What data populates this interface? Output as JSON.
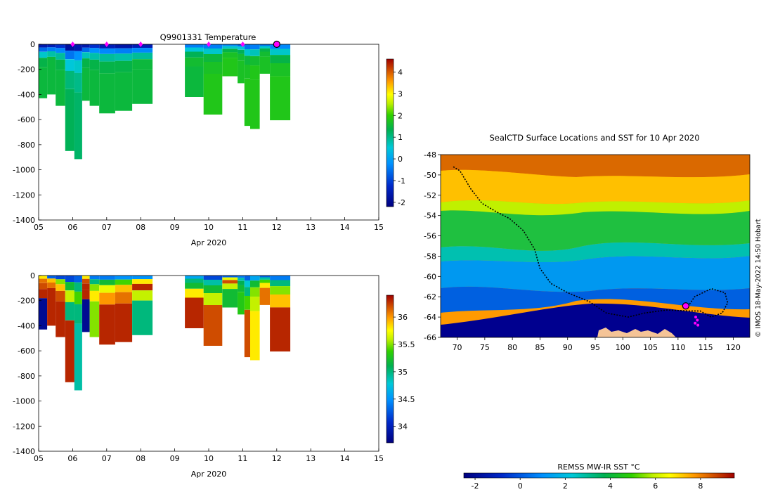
{
  "chart_data": [
    {
      "type": "heatmap",
      "title": "Q9901331  Temperature",
      "xlabel": "Apr 2020",
      "ylabel": "",
      "x_ticks": [
        "05",
        "06",
        "07",
        "08",
        "09",
        "10",
        "11",
        "12",
        "13",
        "14",
        "15"
      ],
      "xlim": [
        5,
        15
      ],
      "y_ticks": [
        0,
        -200,
        -400,
        -600,
        -800,
        -1000,
        -1200,
        -1400
      ],
      "ylim": [
        -1400,
        0
      ],
      "colorbar_ticks": [
        4,
        3,
        2,
        1,
        0,
        -1,
        -2
      ],
      "colorbar_range": [
        -2.2,
        4.6
      ],
      "profile_markers_x": [
        6,
        7,
        8,
        10,
        11
      ],
      "current_marker_x": 12,
      "profiles": [
        {
          "x0": 5.0,
          "x1": 5.25,
          "depth": -430,
          "temps": [
            -1.6,
            -0.6,
            0.6,
            1.4,
            1.5
          ]
        },
        {
          "x0": 5.25,
          "x1": 5.5,
          "depth": -400,
          "temps": [
            -1.5,
            -0.4,
            0.8,
            1.5,
            1.5
          ]
        },
        {
          "x0": 5.5,
          "x1": 5.78,
          "depth": -490,
          "temps": [
            -1.2,
            -0.3,
            0.9,
            1.4,
            1.5
          ]
        },
        {
          "x0": 5.78,
          "x1": 6.05,
          "depth": -850,
          "temps": [
            -1.8,
            -0.5,
            0.5,
            1.1,
            1.3
          ]
        },
        {
          "x0": 6.05,
          "x1": 6.28,
          "depth": -915,
          "temps": [
            -1.6,
            -0.2,
            0.6,
            1.0,
            1.2
          ]
        },
        {
          "x0": 6.28,
          "x1": 6.5,
          "depth": -450,
          "temps": [
            -1.6,
            -0.6,
            0.7,
            1.4,
            1.5
          ]
        },
        {
          "x0": 6.5,
          "x1": 6.78,
          "depth": -490,
          "temps": [
            -1.2,
            -0.2,
            0.8,
            1.4,
            1.5
          ]
        },
        {
          "x0": 6.78,
          "x1": 7.25,
          "depth": -550,
          "temps": [
            -1.5,
            -0.3,
            0.9,
            1.4,
            1.5
          ]
        },
        {
          "x0": 7.25,
          "x1": 7.75,
          "depth": -530,
          "temps": [
            -1.7,
            -0.4,
            0.8,
            1.4,
            1.5
          ]
        },
        {
          "x0": 7.75,
          "x1": 8.35,
          "depth": -475,
          "temps": [
            -1.5,
            -0.3,
            0.9,
            1.5,
            1.5
          ]
        },
        {
          "x0": 9.3,
          "x1": 9.85,
          "depth": -420,
          "temps": [
            -0.4,
            0.5,
            1.3,
            1.6,
            1.5
          ]
        },
        {
          "x0": 9.85,
          "x1": 10.4,
          "depth": -560,
          "temps": [
            -0.4,
            0.6,
            1.5,
            1.7,
            1.8
          ]
        },
        {
          "x0": 10.4,
          "x1": 10.85,
          "depth": -255,
          "temps": [
            -0.3,
            0.6,
            1.4,
            1.7,
            1.8
          ]
        },
        {
          "x0": 10.85,
          "x1": 11.05,
          "depth": -310,
          "temps": [
            -0.6,
            0.5,
            1.3,
            1.6,
            1.7
          ]
        },
        {
          "x0": 11.05,
          "x1": 11.22,
          "depth": -650,
          "temps": [
            -0.5,
            0.6,
            1.5,
            1.7,
            1.8
          ]
        },
        {
          "x0": 11.22,
          "x1": 11.5,
          "depth": -675,
          "temps": [
            -0.4,
            0.7,
            1.6,
            1.8,
            1.8
          ]
        },
        {
          "x0": 11.5,
          "x1": 11.8,
          "depth": -235,
          "temps": [
            -0.5,
            0.6,
            1.4,
            1.6,
            1.7
          ]
        },
        {
          "x0": 11.8,
          "x1": 12.4,
          "depth": -605,
          "temps": [
            -0.3,
            0.6,
            1.4,
            1.7,
            1.8
          ]
        }
      ]
    },
    {
      "type": "heatmap",
      "title": "",
      "xlabel": "Apr 2020",
      "ylabel": "",
      "x_ticks": [
        "05",
        "06",
        "07",
        "08",
        "09",
        "10",
        "11",
        "12",
        "13",
        "14",
        "15"
      ],
      "xlim": [
        5,
        15
      ],
      "y_ticks": [
        0,
        -200,
        -400,
        -600,
        -800,
        -1000,
        -1200,
        -1400
      ],
      "ylim": [
        -1400,
        0
      ],
      "colorbar_ticks": [
        36,
        35.5,
        35,
        34.5,
        34
      ],
      "colorbar_range": [
        33.7,
        36.4
      ],
      "profiles": [
        {
          "x0": 5.0,
          "x1": 5.25,
          "depth": -430,
          "vals": [
            35.8,
            36.1,
            36.2,
            36.3,
            33.8
          ]
        },
        {
          "x0": 5.25,
          "x1": 5.5,
          "depth": -400,
          "vals": [
            34.3,
            35.9,
            36.1,
            36.3,
            36.3
          ]
        },
        {
          "x0": 5.5,
          "x1": 5.78,
          "depth": -490,
          "vals": [
            34.2,
            35.5,
            35.9,
            36.2,
            36.3
          ]
        },
        {
          "x0": 5.78,
          "x1": 6.05,
          "depth": -850,
          "vals": [
            34.2,
            35.2,
            35.6,
            35.0,
            36.3
          ]
        },
        {
          "x0": 6.05,
          "x1": 6.28,
          "depth": -915,
          "vals": [
            34.3,
            35.0,
            35.4,
            35.0,
            34.9
          ]
        },
        {
          "x0": 6.28,
          "x1": 6.5,
          "depth": -450,
          "vals": [
            35.8,
            36.2,
            36.3,
            36.3,
            33.8
          ]
        },
        {
          "x0": 6.5,
          "x1": 6.78,
          "depth": -490,
          "vals": [
            34.4,
            35.0,
            35.5,
            35.8,
            35.5
          ]
        },
        {
          "x0": 6.78,
          "x1": 7.25,
          "depth": -550,
          "vals": [
            34.4,
            35.2,
            35.7,
            36.0,
            36.3
          ]
        },
        {
          "x0": 7.25,
          "x1": 7.75,
          "depth": -530,
          "vals": [
            34.5,
            35.4,
            35.9,
            36.1,
            36.3
          ]
        },
        {
          "x0": 7.75,
          "x1": 8.35,
          "depth": -475,
          "vals": [
            34.5,
            35.8,
            36.3,
            35.6,
            35.0
          ]
        },
        {
          "x0": 9.3,
          "x1": 9.85,
          "depth": -420,
          "vals": [
            34.6,
            35.0,
            35.2,
            35.8,
            36.3
          ]
        },
        {
          "x0": 9.85,
          "x1": 10.4,
          "depth": -560,
          "vals": [
            34.2,
            34.9,
            35.2,
            35.6,
            36.2
          ]
        },
        {
          "x0": 10.4,
          "x1": 10.85,
          "depth": -255,
          "vals": [
            34.3,
            35.7,
            36.2,
            35.6,
            35.2
          ]
        },
        {
          "x0": 10.85,
          "x1": 11.05,
          "depth": -310,
          "vals": [
            34.4,
            34.9,
            35.1,
            35.2,
            35.3
          ]
        },
        {
          "x0": 11.05,
          "x1": 11.22,
          "depth": -650,
          "vals": [
            34.3,
            34.8,
            35.0,
            35.4,
            36.2
          ]
        },
        {
          "x0": 11.22,
          "x1": 11.5,
          "depth": -675,
          "vals": [
            34.6,
            35.2,
            35.5,
            35.6,
            35.8
          ]
        },
        {
          "x0": 11.5,
          "x1": 11.8,
          "depth": -235,
          "vals": [
            34.3,
            34.9,
            35.4,
            35.8,
            36.1
          ]
        },
        {
          "x0": 11.8,
          "x1": 12.4,
          "depth": -605,
          "vals": [
            34.4,
            35.0,
            35.5,
            35.9,
            36.3
          ]
        }
      ]
    },
    {
      "type": "heatmap",
      "title": "SealCTD Surface Locations and SST for 10 Apr 2020",
      "xlabel": "",
      "ylabel": "",
      "x_ticks": [
        70,
        75,
        80,
        85,
        90,
        95,
        100,
        105,
        110,
        115,
        120
      ],
      "xlim": [
        67,
        123
      ],
      "y_ticks": [
        -48,
        -50,
        -52,
        -54,
        -56,
        -58,
        -60,
        -62,
        -64,
        -66
      ],
      "ylim": [
        -66,
        -48
      ],
      "colorbar_label": "REMSS MW-IR SST °C",
      "colorbar_ticks": [
        -2,
        0,
        2,
        4,
        6,
        8
      ],
      "colorbar_range": [
        -2.5,
        9.5
      ],
      "credit": "© IMOS 18-May-2022 14:50 Hobart",
      "track": [
        [
          69.3,
          -49.2
        ],
        [
          70.5,
          -49.6
        ],
        [
          72.5,
          -51.4
        ],
        [
          74.5,
          -52.8
        ],
        [
          77,
          -53.6
        ],
        [
          79.5,
          -54.3
        ],
        [
          82,
          -55.5
        ],
        [
          84,
          -57.3
        ],
        [
          85,
          -59.2
        ],
        [
          87,
          -60.7
        ],
        [
          90,
          -61.6
        ],
        [
          94,
          -62.5
        ],
        [
          97,
          -63.6
        ],
        [
          101,
          -64.0
        ],
        [
          104,
          -63.6
        ],
        [
          108,
          -63.3
        ],
        [
          112,
          -63.4
        ],
        [
          114,
          -63.4
        ],
        [
          116,
          -64.0
        ],
        [
          118,
          -63.6
        ],
        [
          119,
          -62.6
        ],
        [
          118.5,
          -61.6
        ],
        [
          116,
          -61.2
        ],
        [
          113,
          -62.0
        ],
        [
          112,
          -62.8
        ]
      ],
      "current_location": [
        111.4,
        -62.9
      ],
      "recent_locations": [
        [
          113.2,
          -64.0
        ],
        [
          113.5,
          -64.3
        ],
        [
          113.1,
          -64.6
        ],
        [
          113.6,
          -64.8
        ]
      ]
    }
  ]
}
